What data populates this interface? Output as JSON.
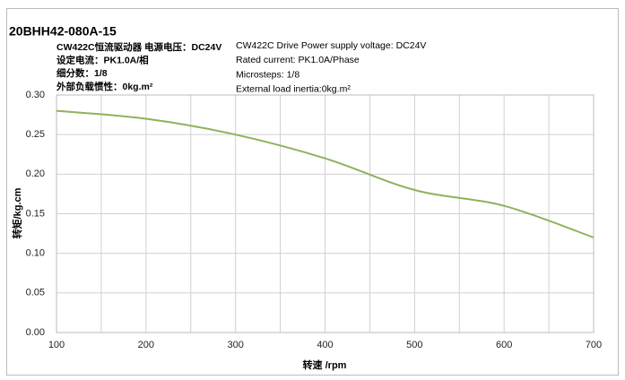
{
  "chart_data": {
    "type": "line",
    "title": "20BHH42-080A-15",
    "x_label": "转速 /rpm",
    "y_label": "转矩/kg.cm",
    "annotations": [
      {
        "text": "CW422C恒流驱动器  电源电压：DC24V",
        "bold": true
      },
      {
        "text": "设定电流：PK1.0A/相",
        "bold": true
      },
      {
        "text": "细分数：1/8",
        "bold": true
      },
      {
        "text": "外部负载惯性：0kg.m²",
        "bold": true
      },
      {
        "text": "CW422C Drive        Power supply voltage: DC24V",
        "bold": false
      },
      {
        "text": "Rated current: PK1.0A/Phase",
        "bold": false
      },
      {
        "text": "Microsteps: 1/8",
        "bold": false
      },
      {
        "text": "External load inertia:0kg.m²",
        "bold": false
      }
    ],
    "x": [
      100,
      200,
      300,
      400,
      500,
      600,
      700
    ],
    "series": [
      {
        "name": "Torque",
        "color": "#8db35a",
        "values": [
          0.28,
          0.27,
          0.25,
          0.22,
          0.18,
          0.16,
          0.12
        ]
      }
    ],
    "xlim": [
      100,
      700
    ],
    "xticks": [
      100,
      200,
      300,
      400,
      500,
      600,
      700
    ],
    "x_minor_ticks": [
      150,
      250,
      350,
      450,
      550,
      650
    ],
    "ylim": [
      0,
      0.3
    ],
    "yticks": [
      {
        "value": 0,
        "label": "0.00"
      },
      {
        "value": 0.05,
        "label": "0.05"
      },
      {
        "value": 0.1,
        "label": "0.10"
      },
      {
        "value": 0.15,
        "label": "0.15"
      },
      {
        "value": 0.2,
        "label": "0.20"
      },
      {
        "value": 0.25,
        "label": "0.25"
      },
      {
        "value": 0.3,
        "label": "0.30"
      }
    ],
    "grid": true
  }
}
